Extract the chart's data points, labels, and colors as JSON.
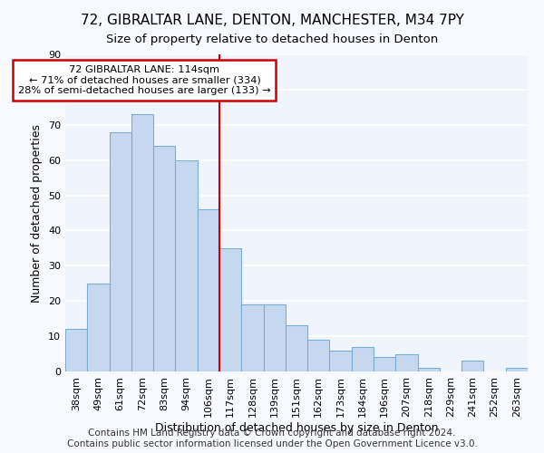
{
  "title": "72, GIBRALTAR LANE, DENTON, MANCHESTER, M34 7PY",
  "subtitle": "Size of property relative to detached houses in Denton",
  "xlabel": "Distribution of detached houses by size in Denton",
  "ylabel": "Number of detached properties",
  "categories": [
    "38sqm",
    "49sqm",
    "61sqm",
    "72sqm",
    "83sqm",
    "94sqm",
    "106sqm",
    "117sqm",
    "128sqm",
    "139sqm",
    "151sqm",
    "162sqm",
    "173sqm",
    "184sqm",
    "196sqm",
    "207sqm",
    "218sqm",
    "229sqm",
    "241sqm",
    "252sqm",
    "263sqm"
  ],
  "values": [
    12,
    25,
    68,
    73,
    64,
    60,
    46,
    35,
    19,
    19,
    13,
    9,
    6,
    7,
    4,
    5,
    1,
    0,
    3,
    0,
    1
  ],
  "bar_color": "#c5d8f0",
  "bar_edge_color": "#7aaed4",
  "vline_index": 7,
  "vline_color": "#cc0000",
  "annotation_text": "72 GIBRALTAR LANE: 114sqm\n← 71% of detached houses are smaller (334)\n28% of semi-detached houses are larger (133) →",
  "annotation_box_color": "white",
  "annotation_box_edge_color": "#cc0000",
  "ylim": [
    0,
    90
  ],
  "yticks": [
    0,
    10,
    20,
    30,
    40,
    50,
    60,
    70,
    80,
    90
  ],
  "footer": "Contains HM Land Registry data © Crown copyright and database right 2024.\nContains public sector information licensed under the Open Government Licence v3.0.",
  "background_color": "#f8f9ff",
  "plot_background": "#f0f4fc",
  "grid_color": "white",
  "title_fontsize": 11,
  "subtitle_fontsize": 9.5,
  "axis_label_fontsize": 9,
  "tick_fontsize": 8,
  "footer_fontsize": 7.5
}
